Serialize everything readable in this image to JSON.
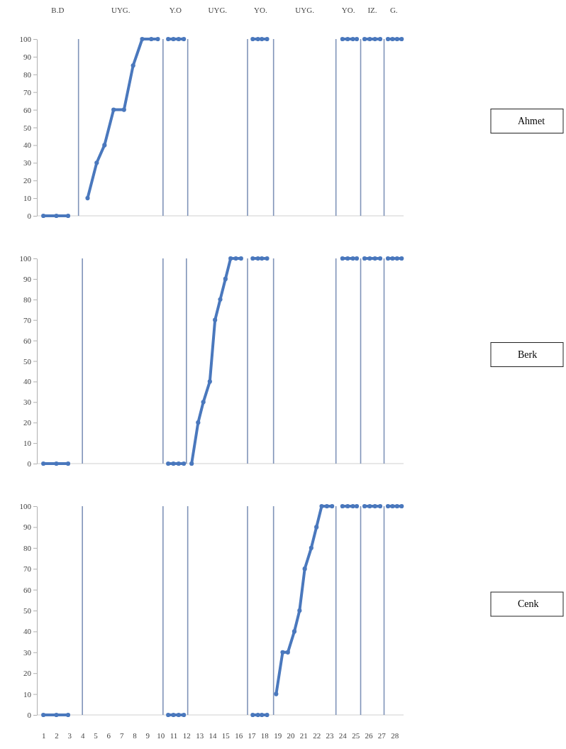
{
  "chart_data": [
    {
      "type": "line",
      "annotations": [
        "B.D",
        "UYG.",
        "Y.O",
        "UYG.",
        "YO.",
        "UYG.",
        "YO.",
        "IZ.",
        "G."
      ],
      "xlim": [
        0.5,
        28.7
      ],
      "ylim": [
        0,
        100
      ],
      "yticks": [
        0,
        10,
        20,
        30,
        40,
        50,
        60,
        70,
        80,
        90,
        100
      ],
      "tick_labels": "y",
      "marker": "circle",
      "legend": "right",
      "ref_lines": [
        {
          "axis": "x",
          "value": 3.7
        },
        {
          "axis": "x",
          "value": 10.2
        },
        {
          "axis": "x",
          "value": 12.1
        },
        {
          "axis": "x",
          "value": 16.7
        },
        {
          "axis": "x",
          "value": 18.7
        },
        {
          "axis": "x",
          "value": 23.5
        },
        {
          "axis": "x",
          "value": 25.4
        },
        {
          "axis": "x",
          "value": 27.2
        }
      ],
      "series": [
        {
          "name": "Ahmet",
          "color": "#4a78bd",
          "x": [
            1,
            2,
            2.9,
            3.7,
            4.4,
            5.1,
            5.7,
            6.4,
            7.2,
            7.9,
            8.6,
            9.3,
            9.8,
            10.2,
            10.6,
            11,
            11.4,
            11.8,
            14.3,
            17.1,
            17.5,
            17.8,
            18.2,
            21.1,
            24,
            24.4,
            24.8,
            25.1,
            25.4,
            25.7,
            26.1,
            26.5,
            26.9,
            27.2,
            27.5,
            27.85,
            28.2,
            28.55
          ],
          "values": [
            0,
            0,
            0,
            null,
            10,
            30,
            40,
            60,
            60,
            85,
            100,
            100,
            100,
            null,
            100,
            100,
            100,
            100,
            null,
            100,
            100,
            100,
            100,
            null,
            100,
            100,
            100,
            100,
            null,
            100,
            100,
            100,
            100,
            null,
            100,
            100,
            100,
            100
          ]
        }
      ]
    },
    {
      "type": "line",
      "xlim": [
        0.5,
        28.7
      ],
      "ylim": [
        0,
        100
      ],
      "yticks": [
        0,
        10,
        20,
        30,
        40,
        50,
        60,
        70,
        80,
        90,
        100
      ],
      "tick_labels": "y",
      "marker": "circle",
      "legend": "right",
      "ref_lines": [
        {
          "axis": "x",
          "value": 4
        },
        {
          "axis": "x",
          "value": 10.2
        },
        {
          "axis": "x",
          "value": 12
        },
        {
          "axis": "x",
          "value": 16.7
        },
        {
          "axis": "x",
          "value": 18.7
        },
        {
          "axis": "x",
          "value": 23.5
        },
        {
          "axis": "x",
          "value": 25.4
        },
        {
          "axis": "x",
          "value": 27.2
        }
      ],
      "series": [
        {
          "name": "Berk",
          "color": "#4a78bd",
          "x": [
            1,
            2,
            2.9,
            6.8,
            10.6,
            11,
            11.4,
            11.8,
            12.3,
            12.4,
            12.9,
            13.3,
            13.8,
            14.2,
            14.6,
            15,
            15.4,
            15.8,
            16.2,
            16.7,
            17.1,
            17.5,
            17.8,
            18.2,
            21.1,
            24,
            24.4,
            24.8,
            25.1,
            25.4,
            25.7,
            26.1,
            26.5,
            26.9,
            27.2,
            27.5,
            27.85,
            28.2,
            28.55
          ],
          "values": [
            0,
            0,
            0,
            null,
            0,
            0,
            0,
            0,
            null,
            0,
            20,
            30,
            40,
            70,
            80,
            90,
            100,
            100,
            100,
            null,
            100,
            100,
            100,
            100,
            null,
            100,
            100,
            100,
            100,
            null,
            100,
            100,
            100,
            100,
            null,
            100,
            100,
            100,
            100
          ]
        }
      ]
    },
    {
      "type": "line",
      "xlim": [
        0.5,
        28.7
      ],
      "ylim": [
        0,
        100
      ],
      "yticks": [
        0,
        10,
        20,
        30,
        40,
        50,
        60,
        70,
        80,
        90,
        100
      ],
      "marker": "circle",
      "legend": "right",
      "xticks": [
        1,
        2,
        3,
        4,
        5,
        6,
        7,
        8,
        9,
        10,
        11,
        12,
        13,
        14,
        15,
        16,
        17,
        18,
        19,
        20,
        21,
        22,
        23,
        24,
        25,
        26,
        27,
        28
      ],
      "ref_lines": [
        {
          "axis": "x",
          "value": 4
        },
        {
          "axis": "x",
          "value": 10.2
        },
        {
          "axis": "x",
          "value": 12.1
        },
        {
          "axis": "x",
          "value": 16.7
        },
        {
          "axis": "x",
          "value": 18.7
        },
        {
          "axis": "x",
          "value": 23.5
        },
        {
          "axis": "x",
          "value": 25.4
        },
        {
          "axis": "x",
          "value": 27.2
        }
      ],
      "series": [
        {
          "name": "Cenk",
          "color": "#4a78bd",
          "x": [
            1,
            2,
            2.9,
            6.8,
            10.6,
            11,
            11.4,
            11.8,
            14.3,
            17.1,
            17.5,
            17.8,
            18.2,
            18.7,
            18.9,
            19.4,
            19.8,
            20.3,
            20.7,
            21.1,
            21.6,
            22,
            22.4,
            22.8,
            23.2,
            23.5,
            24,
            24.4,
            24.8,
            25.1,
            25.4,
            25.7,
            26.1,
            26.5,
            26.9,
            27.2,
            27.5,
            27.85,
            28.2,
            28.55
          ],
          "values": [
            0,
            0,
            0,
            null,
            0,
            0,
            0,
            0,
            null,
            0,
            0,
            0,
            0,
            null,
            10,
            30,
            30,
            40,
            50,
            70,
            80,
            90,
            100,
            100,
            100,
            null,
            100,
            100,
            100,
            100,
            null,
            100,
            100,
            100,
            100,
            null,
            100,
            100,
            100,
            100
          ]
        }
      ]
    }
  ]
}
